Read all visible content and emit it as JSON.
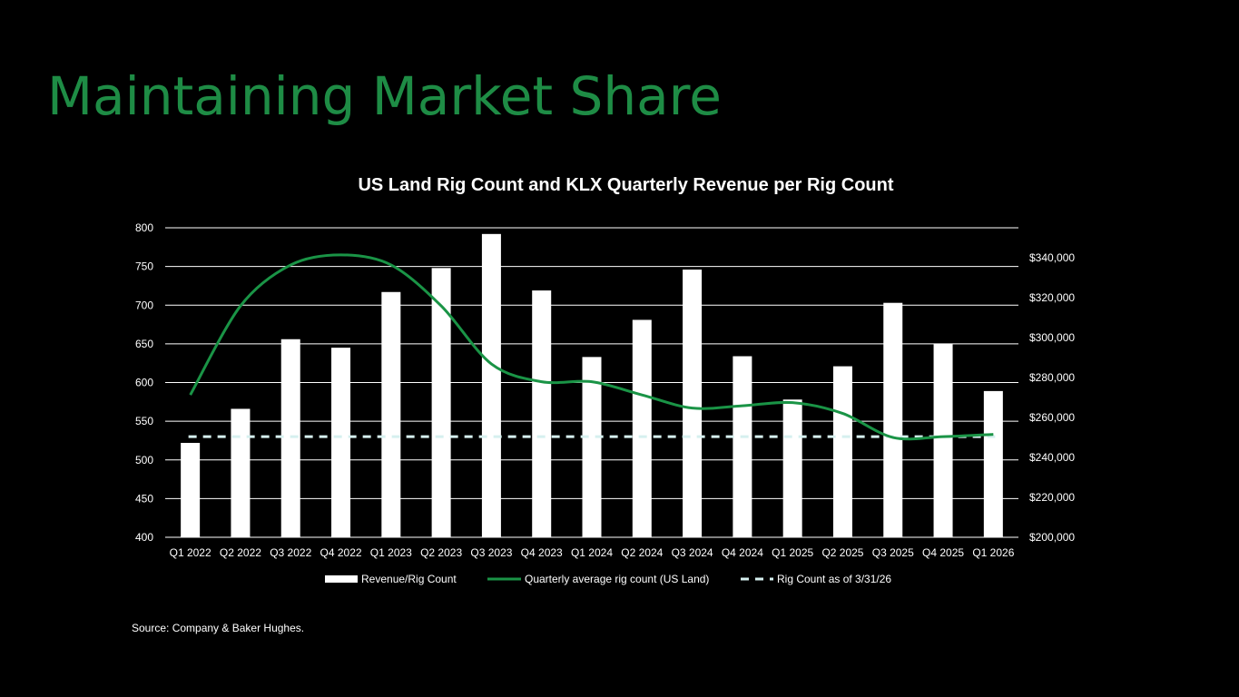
{
  "slide": {
    "title": "Maintaining Market Share",
    "source": "Source: Company & Baker Hughes."
  },
  "colors": {
    "background": "#000000",
    "title": "#1e8c45",
    "bars": "#ffffff",
    "line": "#1a9446",
    "dashed_line": "#d6f0ef",
    "grid": "#ffffff"
  },
  "chart_data": {
    "type": "bar+line",
    "title": "US Land Rig Count and KLX Quarterly Revenue per Rig Count",
    "categories": [
      "Q1 2022",
      "Q2 2022",
      "Q3 2022",
      "Q4 2022",
      "Q1 2023",
      "Q2 2023",
      "Q3 2023",
      "Q4 2023",
      "Q1 2024",
      "Q2 2024",
      "Q3 2024",
      "Q4 2024",
      "Q1 2025",
      "Q2 2025",
      "Q3 2025",
      "Q4 2025",
      "Q1 2026"
    ],
    "left_axis": {
      "min": 400,
      "max": 800,
      "ticks": [
        "400",
        "450",
        "500",
        "550",
        "600",
        "650",
        "700",
        "750",
        "800"
      ]
    },
    "right_axis": {
      "min": 200000,
      "max": 355000,
      "ticks": [
        {
          "value": 200000,
          "label": "$200,000"
        },
        {
          "value": 220000,
          "label": "$220,000"
        },
        {
          "value": 240000,
          "label": "$240,000"
        },
        {
          "value": 260000,
          "label": "$260,000"
        },
        {
          "value": 280000,
          "label": "$280,000"
        },
        {
          "value": 300000,
          "label": "$300,000"
        },
        {
          "value": 320000,
          "label": "$320,000"
        },
        {
          "value": 340000,
          "label": "$340,000"
        }
      ]
    },
    "grid": true,
    "legend_position": "bottom",
    "series": [
      {
        "name": "Revenue/Rig Count",
        "type": "bar",
        "axis": "left",
        "values": [
          522,
          566,
          656,
          645,
          717,
          748,
          792,
          719,
          633,
          681,
          746,
          634,
          578,
          621,
          703,
          650,
          589
        ]
      },
      {
        "name": "Quarterly average rig count (US Land)",
        "type": "line",
        "axis": "left",
        "values": [
          584,
          699,
          752,
          765,
          752,
          699,
          624,
          601,
          601,
          584,
          567,
          570,
          574,
          560,
          529,
          530,
          533
        ]
      },
      {
        "name": "Rig Count as of 3/31/26",
        "type": "dashed-line",
        "axis": "left",
        "value": 530
      }
    ]
  }
}
